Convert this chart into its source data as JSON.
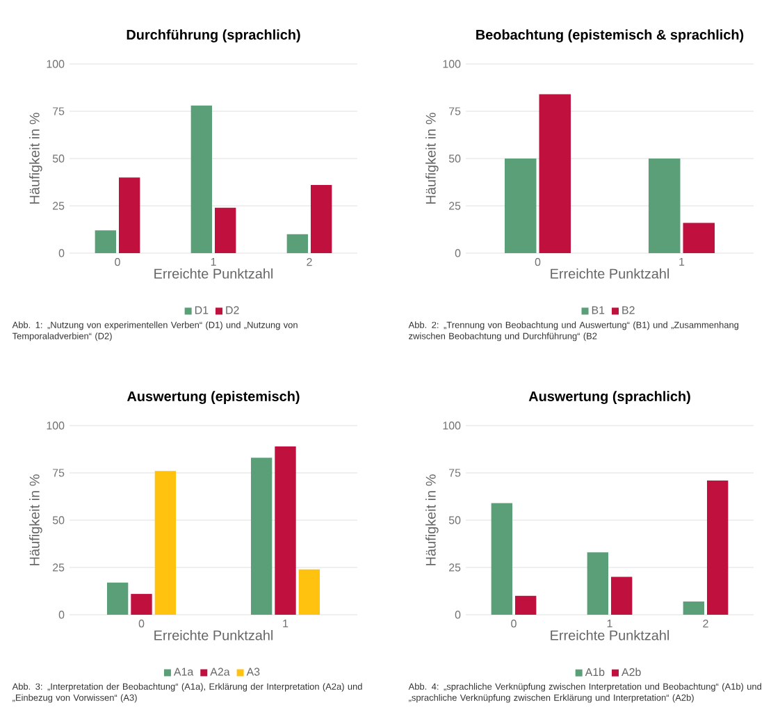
{
  "chart_data": [
    {
      "type": "bar",
      "title": "Durchführung (sprachlich)",
      "xlabel": "Erreichte Punktzahl",
      "ylabel": "Häufigkeit in %",
      "categories": [
        "0",
        "1",
        "2"
      ],
      "series": [
        {
          "name": "D1",
          "color": "#5b9f78",
          "values": [
            12,
            78,
            10
          ]
        },
        {
          "name": "D2",
          "color": "#c0103e",
          "values": [
            40,
            24,
            36
          ]
        }
      ],
      "ylim": [
        0,
        100
      ],
      "yticks": [
        0,
        25,
        50,
        75,
        100
      ],
      "grid": "y",
      "legend": "bottom",
      "annotations": [
        "Abb. 1: „Nutzung von experimentellen Verben“ (D1) und „Nutzung von Temporaladverbien“ (D2)"
      ]
    },
    {
      "type": "bar",
      "title": "Beobachtung (epistemisch & sprachlich)",
      "xlabel": "Erreichte Punktzahl",
      "ylabel": "Häufigkeit in %",
      "categories": [
        "0",
        "1"
      ],
      "series": [
        {
          "name": "B1",
          "color": "#5b9f78",
          "values": [
            50,
            50
          ]
        },
        {
          "name": "B2",
          "color": "#c0103e",
          "values": [
            84,
            16
          ]
        }
      ],
      "ylim": [
        0,
        100
      ],
      "yticks": [
        0,
        25,
        50,
        75,
        100
      ],
      "grid": "y",
      "legend": "bottom",
      "annotations": [
        "Abb. 2: „Trennung von Beobachtung und Auswertung“ (B1) und „Zusammenhang zwischen Beobachtung und Durchführung“ (B2"
      ]
    },
    {
      "type": "bar",
      "title": "Auswertung (epistemisch)",
      "xlabel": "Erreichte Punktzahl",
      "ylabel": "Häufigkeit in %",
      "categories": [
        "0",
        "1"
      ],
      "series": [
        {
          "name": "A1a",
          "color": "#5b9f78",
          "values": [
            17,
            83
          ]
        },
        {
          "name": "A2a",
          "color": "#c0103e",
          "values": [
            11,
            89
          ]
        },
        {
          "name": "A3",
          "color": "#ffc20e",
          "values": [
            76,
            24
          ]
        }
      ],
      "ylim": [
        0,
        100
      ],
      "yticks": [
        0,
        25,
        50,
        75,
        100
      ],
      "grid": "y",
      "legend": "bottom",
      "annotations": [
        "Abb. 3: „Interpretation der Beobachtung“ (A1a), Erklärung der Interpretation (A2a) und „Einbezug von Vorwissen“ (A3)"
      ]
    },
    {
      "type": "bar",
      "title": "Auswertung (sprachlich)",
      "xlabel": "Erreichte Punktzahl",
      "ylabel": "Häufigkeit in %",
      "categories": [
        "0",
        "1",
        "2"
      ],
      "series": [
        {
          "name": "A1b",
          "color": "#5b9f78",
          "values": [
            59,
            33,
            7
          ]
        },
        {
          "name": "A2b",
          "color": "#c0103e",
          "values": [
            10,
            20,
            71
          ]
        }
      ],
      "ylim": [
        0,
        100
      ],
      "yticks": [
        0,
        25,
        50,
        75,
        100
      ],
      "grid": "y",
      "legend": "bottom",
      "annotations": [
        "Abb. 4: „sprachliche Verknüpfung zwischen Interpretation und Beobachtung“ (A1b) und „sprachliche Verknüpfung zwischen Erklärung und Interpretation“ (A2b)"
      ]
    }
  ]
}
